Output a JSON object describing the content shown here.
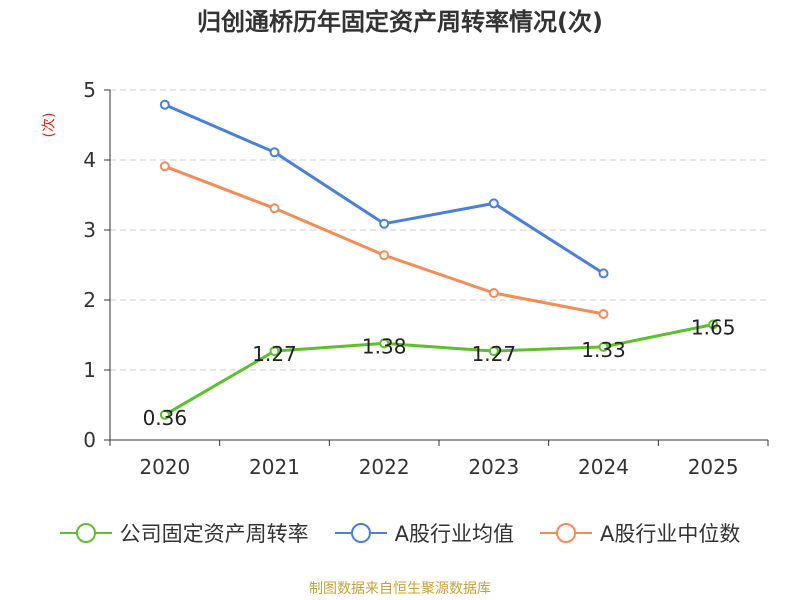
{
  "chart_data": {
    "type": "line",
    "title": "归创通桥历年固定资产周转率情况(次)",
    "ylabel": "(次)",
    "xlabel": "",
    "categories": [
      "2020",
      "2021",
      "2022",
      "2023",
      "2024",
      "2025"
    ],
    "ylim": [
      0,
      5
    ],
    "yticks": [
      0,
      1,
      2,
      3,
      4,
      5
    ],
    "grid": true,
    "legend_position": "bottom",
    "series": [
      {
        "name": "公司固定资产周转率",
        "color": "#5cc02b",
        "values": [
          0.36,
          1.27,
          1.38,
          1.27,
          1.33,
          1.65
        ],
        "labels": [
          "0.36",
          "1.27",
          "1.38",
          "1.27",
          "1.33",
          "1.65"
        ],
        "show_labels": true
      },
      {
        "name": "A股行业均值",
        "color": "#4a7fdb",
        "values": [
          4.79,
          4.11,
          3.09,
          3.38,
          2.38,
          null
        ],
        "show_labels": false
      },
      {
        "name": "A股行业中位数",
        "color": "#f58c55",
        "values": [
          3.91,
          3.31,
          2.64,
          2.1,
          1.8,
          null
        ],
        "show_labels": false
      }
    ]
  },
  "footer": {
    "source": "制图数据来自恒生聚源数据库"
  }
}
